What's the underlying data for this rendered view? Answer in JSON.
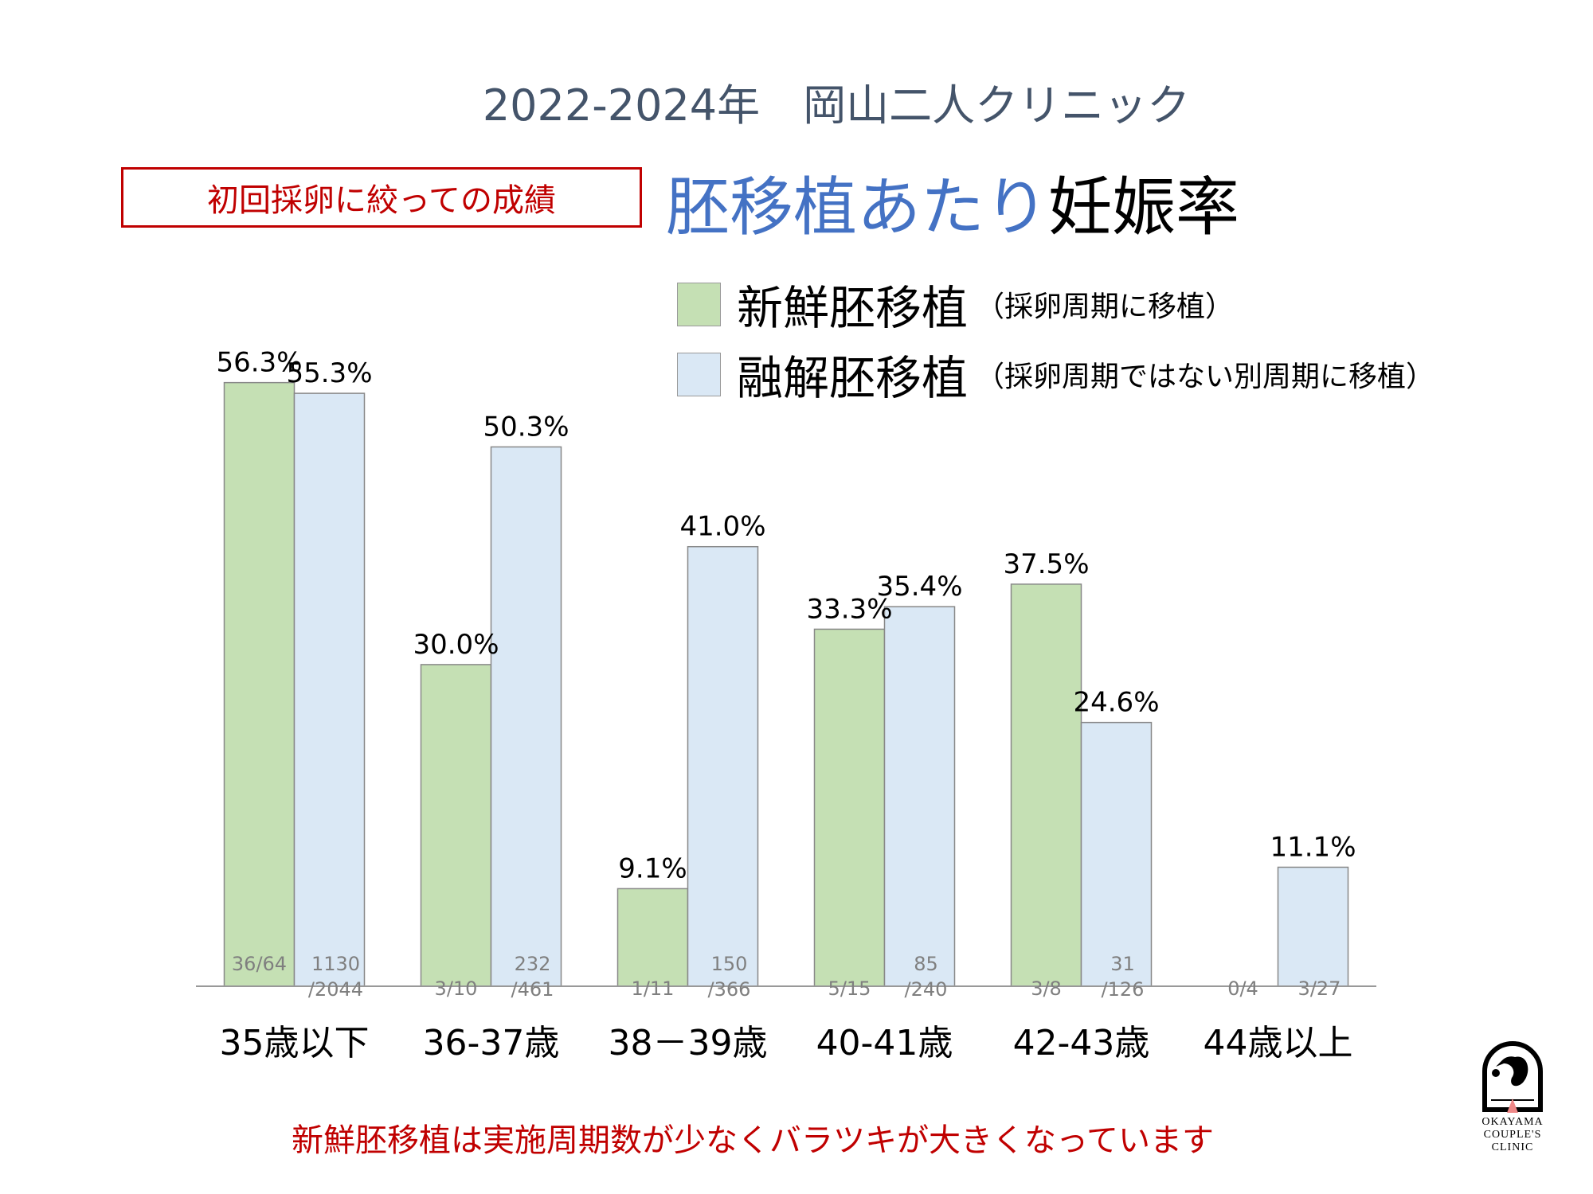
{
  "header": {
    "clinic_title": "2022-2024年　岡山二人クリニック",
    "note_box": "初回採卵に絞っての成績",
    "main_title_blue": "胚移植あたり",
    "main_title_black": "妊娠率"
  },
  "legend": [
    {
      "name": "新鮮胚移植",
      "sub": "（採卵周期に移植）",
      "color": "#c5e0b4"
    },
    {
      "name": "融解胚移植",
      "sub": "（採卵周期ではない別周期に移植）",
      "color": "#dae8f5"
    }
  ],
  "footnote": "新鮮胚移植は実施周期数が少なくバラツキが大きくなっています",
  "logo": {
    "line1": "OKAYAMA",
    "line2": "COUPLE'S",
    "line3": "CLINIC",
    "icon": "stork-icon"
  },
  "chart_data": {
    "type": "bar",
    "title": "胚移植あたり妊娠率",
    "xlabel": "",
    "ylabel": "",
    "ylim": [
      0,
      60
    ],
    "grid": false,
    "legend_position": "top-right",
    "categories": [
      "35歳以下",
      "36-37歳",
      "38－39歳",
      "40-41歳",
      "42-43歳",
      "44歳以上"
    ],
    "series": [
      {
        "name": "新鮮胚移植",
        "color": "#c5e0b4",
        "values": [
          56.3,
          30.0,
          9.1,
          33.3,
          37.5,
          0
        ],
        "labels": [
          "56.3%",
          "30.0%",
          "9.1%",
          "33.3%",
          "37.5%",
          ""
        ],
        "fractions": [
          "36/64",
          "3/10",
          "1/11",
          "5/15",
          "3/8",
          "0/4"
        ]
      },
      {
        "name": "融解胚移植",
        "color": "#dae8f5",
        "values": [
          55.3,
          50.3,
          41.0,
          35.4,
          24.6,
          11.1
        ],
        "labels": [
          "55.3%",
          "50.3%",
          "41.0%",
          "35.4%",
          "24.6%",
          "11.1%"
        ],
        "fractions": [
          "1130\n/2044",
          "232\n/461",
          "150\n/366",
          "85\n/240",
          "31\n/126",
          "3/27"
        ]
      }
    ]
  }
}
